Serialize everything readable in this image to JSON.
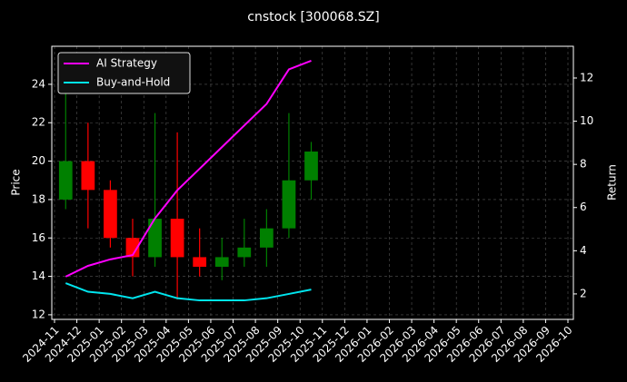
{
  "chart_data": {
    "type": "candlestick",
    "title": "cnstock [300068.SZ]",
    "ylabel": "Price",
    "y2label": "Return",
    "x": [
      "2024-11",
      "2024-12",
      "2025-01",
      "2025-02",
      "2025-03",
      "2025-04",
      "2025-05",
      "2025-06",
      "2025-07",
      "2025-08",
      "2025-09",
      "2025-10"
    ],
    "open": [
      18,
      20,
      18.5,
      16,
      15,
      17,
      15,
      14.5,
      15,
      15.5,
      16.5,
      19
    ],
    "high": [
      24.5,
      22,
      19,
      17,
      22.5,
      21.5,
      16.5,
      16,
      17,
      17.5,
      22.5,
      21
    ],
    "low": [
      17.5,
      16.5,
      15.5,
      14,
      14.5,
      12.8,
      14,
      13.8,
      14.5,
      14.5,
      16,
      18
    ],
    "close": [
      20,
      18.5,
      16,
      15,
      17,
      15,
      14.5,
      15,
      15.5,
      16.5,
      19,
      20.5
    ],
    "up_color": "#008000",
    "down_color": "#ff0000",
    "series": [
      {
        "name": "AI Strategy",
        "color": "#ff00ff",
        "axis": "y2",
        "values": [
          2.8,
          3.3,
          3.6,
          3.8,
          5.5,
          6.8,
          7.8,
          8.8,
          9.8,
          10.8,
          12.4,
          12.8
        ]
      },
      {
        "name": "Buy-and-Hold",
        "color": "#00e5ee",
        "axis": "y2",
        "values": [
          2.5,
          2.1,
          2.0,
          1.8,
          2.1,
          1.8,
          1.7,
          1.7,
          1.7,
          1.8,
          2.0,
          2.2
        ]
      }
    ],
    "xlim": [
      "2024-11",
      "2026-10"
    ],
    "xticks": [
      "2024-11",
      "2024-12",
      "2025-01",
      "2025-02",
      "2025-03",
      "2025-04",
      "2025-05",
      "2025-06",
      "2025-07",
      "2025-08",
      "2025-09",
      "2025-10",
      "2025-11",
      "2025-12",
      "2026-01",
      "2026-02",
      "2026-03",
      "2026-04",
      "2026-05",
      "2026-06",
      "2026-07",
      "2026-08",
      "2026-09",
      "2026-10"
    ],
    "ylim": [
      11.76,
      25.98
    ],
    "yticks": [
      12,
      14,
      16,
      18,
      20,
      22,
      24
    ],
    "y2lim": [
      0.82,
      13.47
    ],
    "y2ticks": [
      2,
      4,
      6,
      8,
      10,
      12
    ],
    "grid": true,
    "legend": "upper left"
  }
}
